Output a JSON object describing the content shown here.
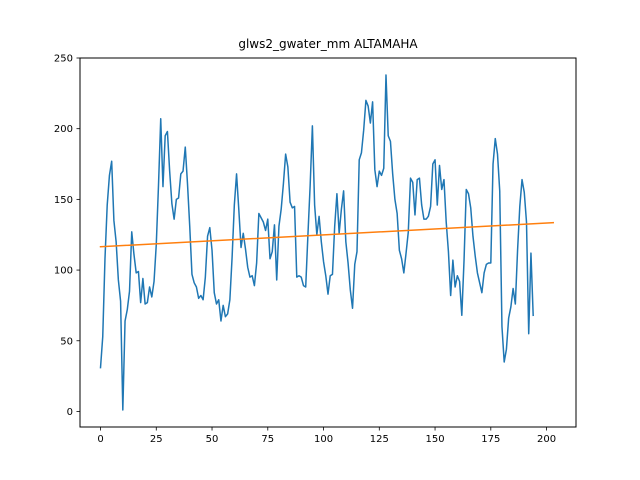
{
  "chart_data": {
    "type": "line",
    "title": "glws2_gwater_mm ALTAMAHA",
    "xlabel": "",
    "ylabel": "",
    "xlim": [
      -9.2,
      213.2
    ],
    "ylim": [
      -11,
      250
    ],
    "xticks": [
      0,
      25,
      50,
      75,
      100,
      125,
      150,
      175,
      200
    ],
    "yticks": [
      0,
      50,
      100,
      150,
      200,
      250
    ],
    "grid": false,
    "series": [
      {
        "color": "#1f77b4",
        "x_start": 0,
        "x_step": 1,
        "values": [
          31,
          53,
          108,
          146,
          167,
          177,
          135,
          120,
          93,
          78,
          1,
          64,
          72,
          85,
          127,
          111,
          98,
          99,
          77,
          94,
          76,
          77,
          88,
          81,
          92,
          118,
          160,
          207,
          159,
          195,
          198,
          170,
          147,
          136,
          150,
          151,
          168,
          170,
          187,
          161,
          131,
          97,
          91,
          88,
          80,
          82,
          79,
          95,
          124,
          130,
          114,
          84,
          76,
          79,
          64,
          75,
          67,
          69,
          79,
          109,
          146,
          168,
          143,
          116,
          126,
          115,
          102,
          95,
          96,
          89,
          105,
          140,
          137,
          134,
          128,
          136,
          108,
          113,
          132,
          93,
          131,
          143,
          161,
          182,
          173,
          148,
          144,
          145,
          95,
          96,
          95,
          89,
          88,
          125,
          160,
          202,
          146,
          125,
          138,
          120,
          106,
          96,
          83,
          96,
          97,
          131,
          154,
          126,
          143,
          156,
          120,
          105,
          86,
          73,
          104,
          113,
          178,
          183,
          199,
          220,
          216,
          204,
          219,
          171,
          159,
          170,
          167,
          172,
          238,
          195,
          191,
          168,
          150,
          140,
          114,
          108,
          98,
          112,
          127,
          165,
          162,
          139,
          164,
          165,
          146,
          136,
          136,
          138,
          145,
          175,
          178,
          146,
          174,
          157,
          164,
          134,
          113,
          82,
          107,
          88,
          96,
          92,
          68,
          107,
          157,
          154,
          144,
          124,
          110,
          98,
          91,
          84,
          98,
          104,
          105,
          105,
          175,
          193,
          182,
          156,
          60,
          35,
          44,
          66,
          74,
          87,
          76,
          114,
          145,
          164,
          155,
          134,
          55,
          112,
          68
        ]
      },
      {
        "color": "#ff7f0e",
        "x": [
          0,
          203
        ],
        "y": [
          116.5,
          133.5
        ]
      }
    ]
  }
}
